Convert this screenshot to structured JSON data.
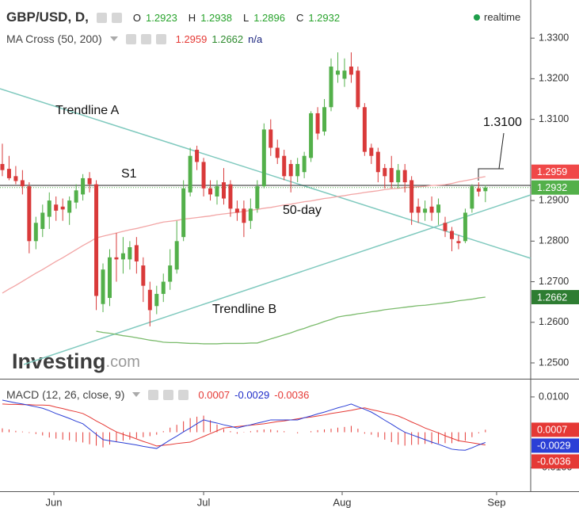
{
  "chart_data": {
    "type": "candlestick",
    "title": "GBP/USD, D,",
    "ohlc_labels": [
      "O",
      "H",
      "L",
      "C"
    ],
    "status": "realtime",
    "watermark": [
      "Investing",
      ".com"
    ],
    "up_color": "#53b04a",
    "down_color": "#d93a3a",
    "xlim": [
      -0.35,
      78.75
    ],
    "xticks": [
      {
        "value": 7.68,
        "label": "Jun"
      },
      {
        "value": 30,
        "label": "Jul"
      },
      {
        "value": 50.65,
        "label": "Aug"
      },
      {
        "value": 73.67,
        "label": "Sep"
      }
    ],
    "ylim": [
      1.2461,
      1.3394
    ],
    "yticks": [
      {
        "value": 1.33,
        "label": "1.3300"
      },
      {
        "value": 1.32,
        "label": "1.3200"
      },
      {
        "value": 1.31,
        "label": "1.3100"
      },
      {
        "value": 1.29,
        "label": "1.2900"
      },
      {
        "value": 1.28,
        "label": "1.2800"
      },
      {
        "value": 1.27,
        "label": "1.2700"
      },
      {
        "value": 1.26,
        "label": "1.2600"
      },
      {
        "value": 1.25,
        "label": "1.2500"
      }
    ],
    "open": [
      1.299,
      1.2978,
      1.296,
      1.295,
      1.2935,
      1.28,
      1.283,
      1.286,
      1.289,
      1.2885,
      1.287,
      1.2895,
      1.2915,
      1.2955,
      1.294,
      1.2645,
      1.266,
      1.276,
      1.2755,
      1.2755,
      1.279,
      1.274,
      1.268,
      1.264,
      1.267,
      1.27,
      1.273,
      1.281,
      1.292,
      1.3025,
      1.2995,
      1.293,
      1.291,
      1.2945,
      1.294,
      1.288,
      1.288,
      1.285,
      1.288,
      1.2935,
      1.3075,
      1.303,
      1.301,
      1.299,
      1.296,
      1.297,
      1.3005,
      1.3115,
      1.307,
      1.313,
      1.321,
      1.32,
      1.323,
      1.322,
      1.313,
      1.303,
      1.302,
      1.298,
      1.298,
      1.2945,
      1.2975,
      1.295,
      1.2885,
      1.287,
      1.2885,
      1.287,
      1.2845,
      1.2825,
      1.28,
      1.28,
      1.288,
      1.293,
      1.2923
    ],
    "high": [
      1.304,
      1.301,
      1.2985,
      1.2975,
      1.2945,
      1.286,
      1.289,
      1.292,
      1.291,
      1.2905,
      1.291,
      1.294,
      1.2965,
      1.297,
      1.295,
      1.2745,
      1.278,
      1.282,
      1.281,
      1.28,
      1.281,
      1.276,
      1.27,
      1.269,
      1.272,
      1.278,
      1.285,
      1.295,
      1.303,
      1.3035,
      1.3005,
      1.295,
      1.295,
      1.298,
      1.295,
      1.29,
      1.29,
      1.2905,
      1.295,
      1.309,
      1.31,
      1.305,
      1.3025,
      1.3,
      1.3005,
      1.302,
      1.312,
      1.313,
      1.315,
      1.325,
      1.3265,
      1.325,
      1.3265,
      1.323,
      1.314,
      1.304,
      1.303,
      1.299,
      1.301,
      1.299,
      1.299,
      1.296,
      1.2905,
      1.29,
      1.291,
      1.2905,
      1.286,
      1.2835,
      1.2815,
      1.288,
      1.294,
      1.2945,
      1.2938
    ],
    "low": [
      1.296,
      1.295,
      1.294,
      1.2915,
      1.277,
      1.278,
      1.281,
      1.283,
      1.285,
      1.285,
      1.284,
      1.288,
      1.29,
      1.292,
      1.263,
      1.2625,
      1.264,
      1.27,
      1.272,
      1.273,
      1.272,
      1.265,
      1.259,
      1.262,
      1.265,
      1.268,
      1.272,
      1.28,
      1.291,
      1.2975,
      1.291,
      1.29,
      1.289,
      1.289,
      1.286,
      1.285,
      1.281,
      1.283,
      1.287,
      1.293,
      1.301,
      1.299,
      1.295,
      1.292,
      1.2945,
      1.2955,
      1.2995,
      1.305,
      1.306,
      1.312,
      1.319,
      1.318,
      1.319,
      1.3125,
      1.301,
      1.299,
      1.2945,
      1.293,
      1.293,
      1.293,
      1.292,
      1.284,
      1.2845,
      1.285,
      1.285,
      1.284,
      1.281,
      1.2775,
      1.278,
      1.2795,
      1.287,
      1.291,
      1.2896
    ],
    "close": [
      1.2975,
      1.2955,
      1.2948,
      1.2935,
      1.28,
      1.2845,
      1.287,
      1.29,
      1.2875,
      1.2878,
      1.29,
      1.2925,
      1.2955,
      1.294,
      1.2665,
      1.273,
      1.276,
      1.2755,
      1.277,
      1.2785,
      1.275,
      1.269,
      1.263,
      1.267,
      1.27,
      1.274,
      1.28,
      1.293,
      1.301,
      1.2995,
      1.293,
      1.2915,
      1.2935,
      1.2905,
      1.288,
      1.287,
      1.2845,
      1.288,
      1.2935,
      1.3075,
      1.303,
      1.3005,
      1.296,
      1.296,
      1.299,
      1.301,
      1.3115,
      1.3065,
      1.313,
      1.323,
      1.322,
      1.322,
      1.321,
      1.313,
      1.302,
      1.301,
      1.297,
      1.296,
      1.2945,
      1.2975,
      1.2945,
      1.287,
      1.287,
      1.288,
      1.287,
      1.289,
      1.2825,
      1.2805,
      1.2795,
      1.287,
      1.2935,
      1.2922,
      1.2932
    ],
    "ma": {
      "title": "MA Cross (50, 200)",
      "na": "n/a",
      "series": [
        {
          "color": "#f2a5a5",
          "label_color": "#f04848",
          "values": [
            1.2672,
            1.2682,
            1.2691,
            1.2701,
            1.2711,
            1.2721,
            1.273,
            1.274,
            1.275,
            1.2759,
            1.2769,
            1.2779,
            1.2789,
            1.2798,
            1.2808,
            1.2812,
            1.2816,
            1.282,
            1.2824,
            1.2828,
            1.2831,
            1.2835,
            1.2839,
            1.2843,
            1.2847,
            1.2849,
            1.2851,
            1.2854,
            1.2856,
            1.2858,
            1.286,
            1.2862,
            1.2865,
            1.2867,
            1.2869,
            1.2871,
            1.2873,
            1.2876,
            1.2878,
            1.2881,
            1.2883,
            1.2886,
            1.2889,
            1.2891,
            1.2894,
            1.2897,
            1.2899,
            1.2902,
            1.2905,
            1.2907,
            1.291,
            1.2912,
            1.2915,
            1.2917,
            1.292,
            1.2922,
            1.2924,
            1.2927,
            1.2929,
            1.293,
            1.2932,
            1.2933,
            1.2934,
            1.2935,
            1.2937,
            1.2938,
            1.2939,
            1.2942,
            1.2946,
            1.2949,
            1.2952,
            1.2956,
            1.2959
          ]
        },
        {
          "color": "#7bbb6c",
          "label_color": "#2e7d32",
          "values": [
            null,
            null,
            null,
            null,
            null,
            null,
            null,
            null,
            null,
            null,
            null,
            null,
            null,
            null,
            1.2578,
            1.2575,
            1.2573,
            1.257,
            1.2567,
            1.2565,
            1.2562,
            1.2559,
            1.2556,
            1.2554,
            1.2551,
            1.255,
            1.255,
            1.2549,
            1.2548,
            1.2548,
            1.2547,
            1.2547,
            1.2547,
            1.2548,
            1.2548,
            1.2548,
            1.2548,
            1.2549,
            1.2549,
            1.2554,
            1.2559,
            1.2564,
            1.2569,
            1.2574,
            1.258,
            1.2585,
            1.2591,
            1.2596,
            1.2602,
            1.2607,
            1.2613,
            1.2616,
            1.2618,
            1.2621,
            1.2623,
            1.2626,
            1.2628,
            1.2631,
            1.2633,
            1.2635,
            1.2637,
            1.2639,
            1.2641,
            1.2642,
            1.2644,
            1.2646,
            1.2648,
            1.265,
            1.2653,
            1.2655,
            1.2657,
            1.266,
            1.2662
          ]
        }
      ]
    },
    "annotations": [
      "Trendline A",
      "S1",
      "50-day",
      "Trendline B",
      "1.3100"
    ],
    "macd": {
      "title": "MACD (12, 26, close, 9)",
      "ylim": [
        -0.0167,
        0.0147
      ],
      "yticks": [
        {
          "value": 0.01,
          "label": "0.0100"
        },
        {
          "value": -0.01,
          "label": "-0.0100"
        }
      ],
      "histogram": {
        "color": "#e53935",
        "values": [
          0.0011,
          0.0008,
          0.0004,
          0.0002,
          -0.0002,
          -0.0005,
          -0.0009,
          -0.0015,
          -0.0018,
          -0.0021,
          -0.0023,
          -0.0027,
          -0.0029,
          -0.0034,
          -0.0038,
          -0.0043,
          -0.0035,
          -0.0028,
          -0.0024,
          -0.0021,
          -0.0017,
          -0.0014,
          -0.0011,
          -0.0007,
          0.0003,
          0.0013,
          0.0021,
          0.0031,
          0.004,
          0.0044,
          0.0047,
          0.0034,
          0.0022,
          0.0009,
          0.0003,
          -0.0004,
          -0.0001,
          0.0003,
          0.0006,
          0.0008,
          0.0008,
          0.0005,
          0.0003,
          0.0,
          -0.0003,
          0.0,
          0.0003,
          0.0006,
          0.0008,
          0.001,
          0.0013,
          0.0015,
          0.0018,
          0.001,
          -0.0004,
          -0.0007,
          -0.0014,
          -0.0021,
          -0.0028,
          -0.0035,
          -0.0038,
          -0.0036,
          -0.0035,
          -0.0033,
          -0.0033,
          -0.0032,
          -0.0031,
          -0.0031,
          -0.0026,
          -0.0024,
          -0.0014,
          -0.0003,
          0.0007
        ]
      },
      "macd": {
        "color": "#2b3fd6",
        "values": [
          0.0091,
          0.0087,
          0.0083,
          0.008,
          0.0076,
          0.0072,
          0.0068,
          0.0061,
          0.0053,
          0.0046,
          0.0039,
          0.0031,
          0.0024,
          0.0009,
          -0.0006,
          -0.0021,
          -0.0024,
          -0.0027,
          -0.003,
          -0.0033,
          -0.0036,
          -0.004,
          -0.0043,
          -0.0046,
          -0.0034,
          -0.0022,
          -0.0011,
          0.0001,
          0.0012,
          0.0024,
          0.0035,
          0.003,
          0.0026,
          0.0021,
          0.0017,
          0.0012,
          0.0017,
          0.0021,
          0.0026,
          0.003,
          0.0035,
          0.0035,
          0.0035,
          0.0035,
          0.0035,
          0.0041,
          0.0046,
          0.0052,
          0.0057,
          0.0063,
          0.0069,
          0.0074,
          0.008,
          0.0072,
          0.0065,
          0.0057,
          0.0046,
          0.0034,
          0.0023,
          0.0011,
          0.0,
          -0.0007,
          -0.0014,
          -0.0021,
          -0.0028,
          -0.0034,
          -0.0041,
          -0.0048,
          -0.005,
          -0.0051,
          -0.0044,
          -0.0036,
          -0.0029
        ]
      },
      "signal": {
        "color": "#e53935",
        "values": [
          0.008,
          0.0079,
          0.0079,
          0.0078,
          0.0078,
          0.0077,
          0.0077,
          0.0076,
          0.0071,
          0.0067,
          0.0062,
          0.0058,
          0.0053,
          0.0043,
          0.0032,
          0.0022,
          0.0011,
          0.0001,
          -0.0006,
          -0.0012,
          -0.0019,
          -0.0026,
          -0.0032,
          -0.0039,
          -0.0037,
          -0.0035,
          -0.0032,
          -0.003,
          -0.0028,
          -0.002,
          -0.0012,
          -0.0004,
          0.0004,
          0.0012,
          0.0014,
          0.0016,
          0.0018,
          0.002,
          0.0022,
          0.0024,
          0.0027,
          0.003,
          0.0032,
          0.0035,
          0.0038,
          0.0041,
          0.0043,
          0.0046,
          0.0049,
          0.0053,
          0.0056,
          0.0059,
          0.0062,
          0.0066,
          0.0069,
          0.0064,
          0.006,
          0.0055,
          0.0051,
          0.0046,
          0.0038,
          0.0029,
          0.0021,
          0.0012,
          0.0005,
          -0.0002,
          -0.001,
          -0.0017,
          -0.0024,
          -0.0027,
          -0.003,
          -0.0033,
          -0.0036
        ]
      }
    }
  }
}
